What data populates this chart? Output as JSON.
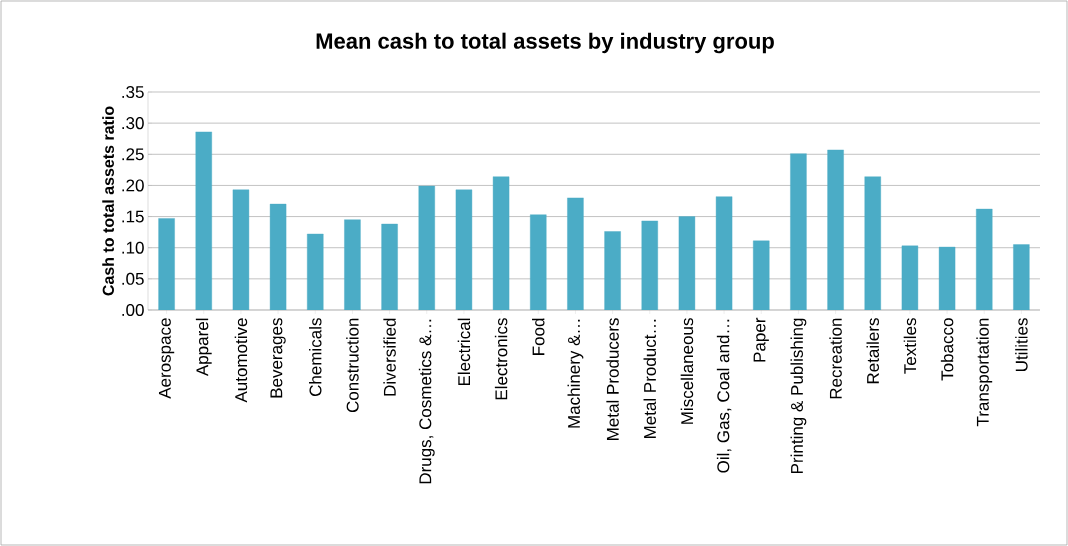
{
  "chart_data": {
    "type": "bar",
    "title": "Mean cash to total assets by industry group",
    "ylabel": "Cash to total assets ratio",
    "categories": [
      "Aerospace",
      "Apparel",
      "Automotive",
      "Beverages",
      "Chemicals",
      "Construction",
      "Diversified",
      "Drugs, Cosmetics &…",
      "Electrical",
      "Electronics",
      "Food",
      "Machinery &…",
      "Metal Producers",
      "Metal Product…",
      "Miscellaneous",
      "Oil, Gas, Coal and…",
      "Paper",
      "Printing & Publishing",
      "Recreation",
      "Retailers",
      "Textiles",
      "Tobacco",
      "Transportation",
      "Utilities"
    ],
    "values": [
      0.147,
      0.286,
      0.193,
      0.17,
      0.122,
      0.145,
      0.138,
      0.199,
      0.193,
      0.214,
      0.153,
      0.18,
      0.126,
      0.143,
      0.15,
      0.182,
      0.111,
      0.251,
      0.257,
      0.214,
      0.103,
      0.101,
      0.162,
      0.105
    ],
    "color": "#4bacc6",
    "ylim": [
      0,
      0.35
    ],
    "yticks": [
      {
        "value": 0,
        "label": ".00"
      },
      {
        "value": 0.05,
        "label": ".05"
      },
      {
        "value": 0.1,
        "label": ".10"
      },
      {
        "value": 0.15,
        "label": ".15"
      },
      {
        "value": 0.2,
        "label": ".20"
      },
      {
        "value": 0.25,
        "label": ".25"
      },
      {
        "value": 0.3,
        "label": ".30"
      },
      {
        "value": 0.35,
        "label": ".35"
      }
    ],
    "grid": "y"
  }
}
